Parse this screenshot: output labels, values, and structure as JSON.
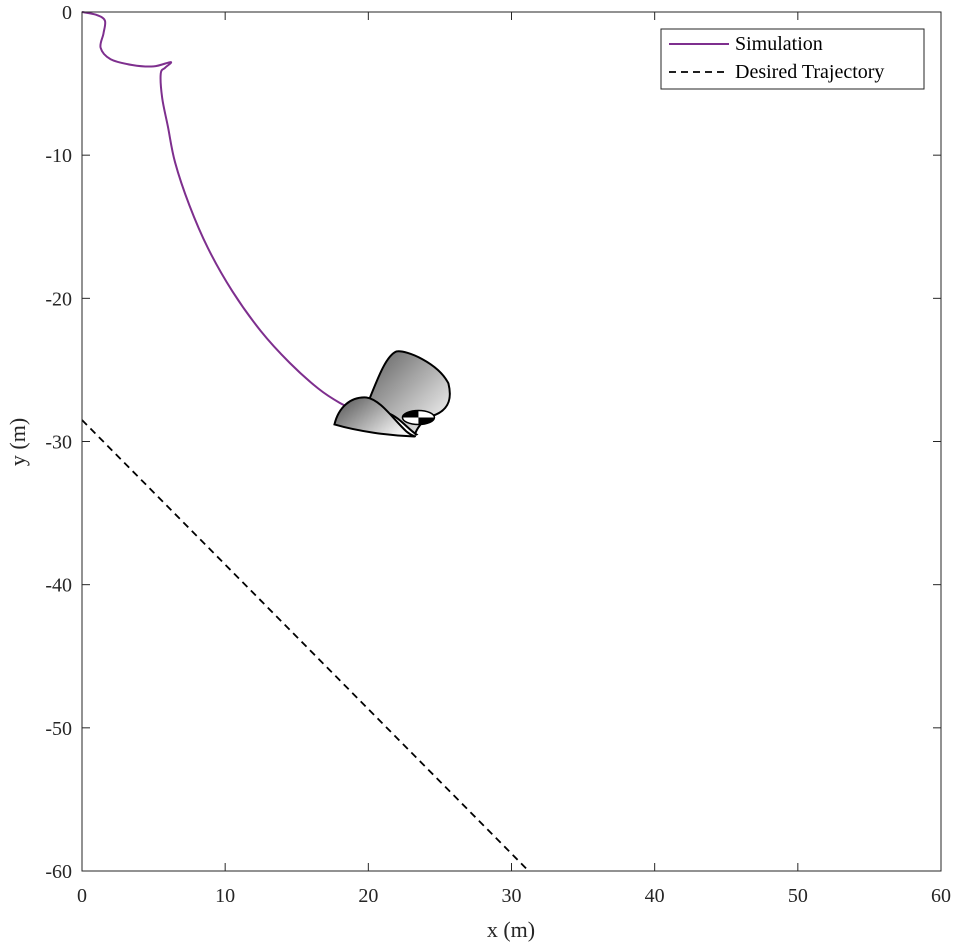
{
  "chart_data": {
    "type": "line",
    "xlabel": "x (m)",
    "ylabel": "y (m)",
    "xlim": [
      0,
      60
    ],
    "ylim": [
      -60,
      0
    ],
    "xticks": [
      0,
      10,
      20,
      30,
      40,
      50,
      60
    ],
    "yticks": [
      0,
      -10,
      -20,
      -30,
      -40,
      -50,
      -60
    ],
    "grid": false,
    "legend_position": "top-right",
    "series": [
      {
        "name": "Simulation",
        "style": "solid",
        "color": "#7E2F8E",
        "points": [
          [
            0,
            0
          ],
          [
            1,
            -0.2
          ],
          [
            1.6,
            -0.6
          ],
          [
            1.5,
            -1.5
          ],
          [
            1.3,
            -2.5
          ],
          [
            2.0,
            -3.3
          ],
          [
            3.5,
            -3.7
          ],
          [
            5.0,
            -3.8
          ],
          [
            6.2,
            -3.5
          ],
          [
            5.8,
            -3.9
          ],
          [
            5.5,
            -4.3
          ],
          [
            5.6,
            -6.0
          ],
          [
            6.0,
            -8.0
          ],
          [
            6.5,
            -10.5
          ],
          [
            7.5,
            -13.5
          ],
          [
            8.8,
            -16.5
          ],
          [
            10.5,
            -19.5
          ],
          [
            12.5,
            -22.3
          ],
          [
            14.5,
            -24.5
          ],
          [
            16.5,
            -26.3
          ],
          [
            18.0,
            -27.3
          ],
          [
            19.3,
            -27.9
          ]
        ]
      },
      {
        "name": "Desired Trajectory",
        "style": "dashed",
        "color": "#000000",
        "points": [
          [
            0,
            -28.5
          ],
          [
            31.2,
            -60
          ]
        ]
      }
    ],
    "vehicle": {
      "position": [
        23.5,
        -28.6
      ],
      "body_color_dark": "#6e6e6e",
      "body_color_light": "#ffffff"
    }
  }
}
